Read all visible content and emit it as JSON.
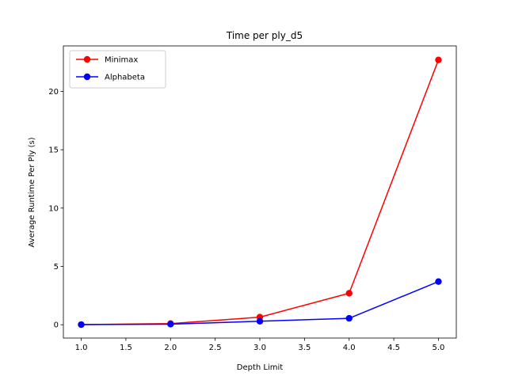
{
  "chart_data": {
    "type": "line",
    "title": "Time per ply_d5",
    "xlabel": "Depth Limit",
    "ylabel": "Average Runtime Per Ply (s)",
    "x": [
      1.0,
      2.0,
      3.0,
      4.0,
      5.0
    ],
    "xlim": [
      0.8,
      5.2
    ],
    "ylim": [
      -1.14,
      23.9
    ],
    "xticks": [
      1.0,
      1.5,
      2.0,
      2.5,
      3.0,
      3.5,
      4.0,
      4.5,
      5.0
    ],
    "xtick_labels": [
      "1.0",
      "1.5",
      "2.0",
      "2.5",
      "3.0",
      "3.5",
      "4.0",
      "4.5",
      "5.0"
    ],
    "yticks": [
      0,
      5,
      10,
      15,
      20
    ],
    "ytick_labels": [
      "0",
      "5",
      "10",
      "15",
      "20"
    ],
    "grid": false,
    "legend_position": "top-left",
    "series": [
      {
        "name": "Minimax",
        "color": "#ff0000",
        "values": [
          0.01,
          0.1,
          0.65,
          2.7,
          22.7
        ]
      },
      {
        "name": "Alphabeta",
        "color": "#0000ff",
        "values": [
          0.01,
          0.05,
          0.3,
          0.55,
          3.7
        ]
      }
    ]
  }
}
